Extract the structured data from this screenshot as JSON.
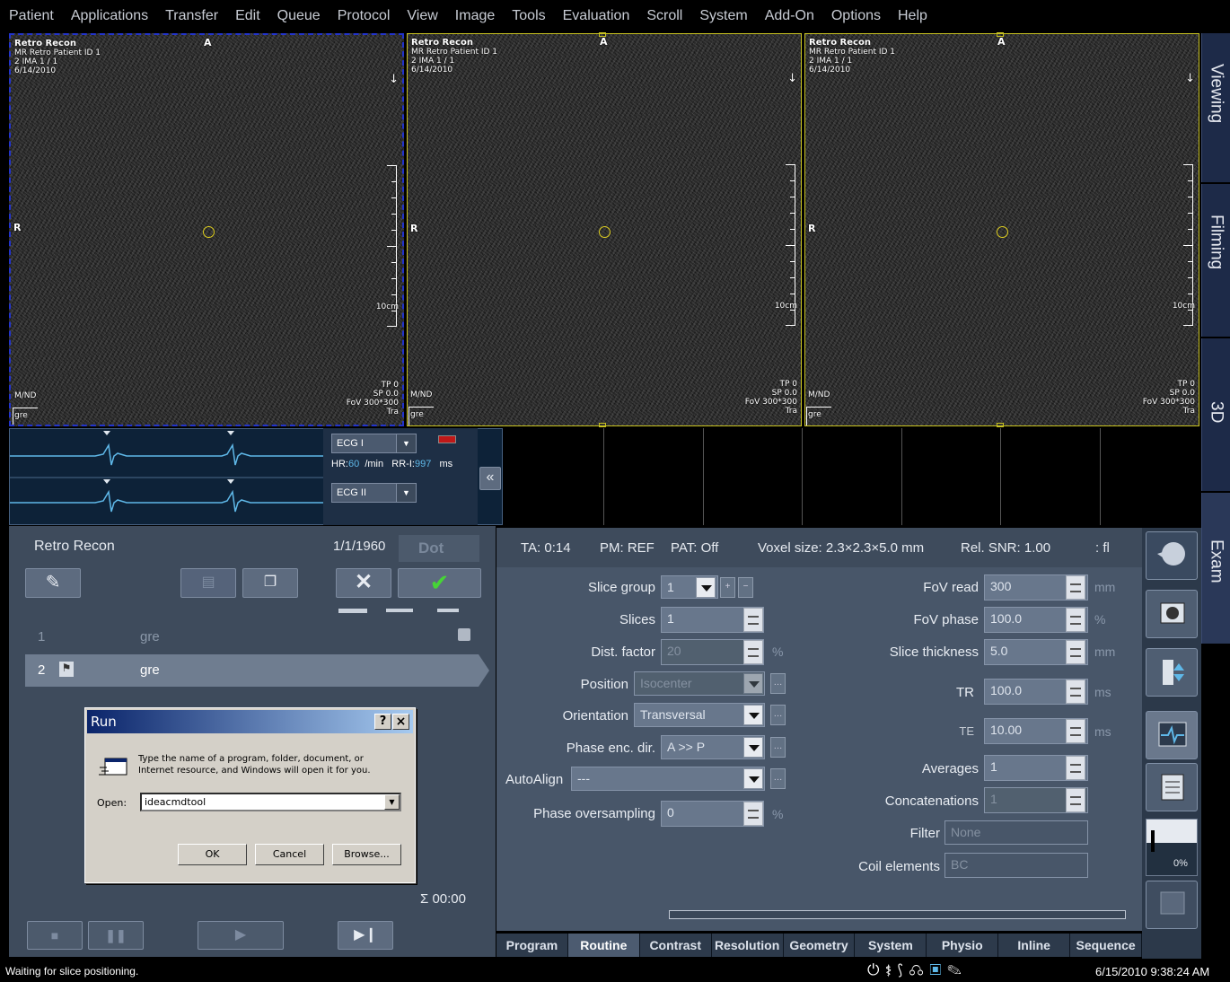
{
  "menu": [
    "Patient",
    "Applications",
    "Transfer",
    "Edit",
    "Queue",
    "Protocol",
    "View",
    "Image",
    "Tools",
    "Evaluation",
    "Scroll",
    "System",
    "Add-On",
    "Options",
    "Help"
  ],
  "viewport": {
    "title": "Retro Recon",
    "patient": "MR Retro Patient ID 1",
    "ima": "2 IMA 1 / 1",
    "date": "6/14/2010",
    "orient_top": "A",
    "orient_left": "R",
    "arrow": "↓",
    "scale": "10cm",
    "bl1": "M/ND",
    "bl2": "gre",
    "tp": "TP 0",
    "sp": "SP 0.0",
    "fov": "FoV 300*300",
    "tra": "Tra"
  },
  "side_tabs": [
    "Viewing",
    "Filming",
    "3D",
    "Exam"
  ],
  "ecg": {
    "lead1": "ECG I",
    "lead2": "ECG II",
    "hr_label": "HR:",
    "hr": "60",
    "hr_unit": "/min",
    "rr_label": "RR-I:",
    "rr": "997",
    "rr_unit": "ms",
    "collapse": "«"
  },
  "left_panel": {
    "title": "Retro Recon",
    "date": "1/1/1960",
    "dot": "Dot",
    "rows": [
      {
        "num": "1",
        "name": "gre"
      },
      {
        "num": "2",
        "name": "gre"
      }
    ],
    "sum": "Σ 00:00"
  },
  "status_line": {
    "ta": "TA: 0:14",
    "pm": "PM: REF",
    "pat": "PAT: Off",
    "voxel": "Voxel size: 2.3×2.3×5.0 mm",
    "snr": "Rel. SNR: 1.00",
    "fl": ": fl"
  },
  "params_left": {
    "slice_group": {
      "label": "Slice group",
      "value": "1",
      "plus": "+",
      "minus": "−"
    },
    "slices": {
      "label": "Slices",
      "value": "1"
    },
    "dist_factor": {
      "label": "Dist. factor",
      "value": "20",
      "unit": "%"
    },
    "position": {
      "label": "Position",
      "value": "Isocenter"
    },
    "orientation": {
      "label": "Orientation",
      "value": "Transversal"
    },
    "phase_enc": {
      "label": "Phase enc. dir.",
      "value": "A >> P"
    },
    "autoalign": {
      "label": "AutoAlign",
      "value": "---"
    },
    "phase_os": {
      "label": "Phase oversampling",
      "value": "0",
      "unit": "%"
    }
  },
  "params_right": {
    "fov_read": {
      "label": "FoV read",
      "value": "300",
      "unit": "mm"
    },
    "fov_phase": {
      "label": "FoV phase",
      "value": "100.0",
      "unit": "%"
    },
    "slice_thk": {
      "label": "Slice thickness",
      "value": "5.0",
      "unit": "mm"
    },
    "tr": {
      "label": "TR",
      "value": "100.0",
      "unit": "ms"
    },
    "te": {
      "label": "TE",
      "value": "10.00",
      "unit": "ms"
    },
    "averages": {
      "label": "Averages",
      "value": "1"
    },
    "concat": {
      "label": "Concatenations",
      "value": "1"
    },
    "filter": {
      "label": "Filter",
      "value": "None"
    },
    "coil": {
      "label": "Coil elements",
      "value": "BC"
    }
  },
  "tabs": [
    "Program",
    "Routine",
    "Contrast",
    "Resolution",
    "Geometry",
    "System",
    "Physio",
    "Inline",
    "Sequence"
  ],
  "active_tab": "Routine",
  "percent": "0%",
  "run_dialog": {
    "title": "Run",
    "help": "?",
    "close": "×",
    "text1": "Type the name of a program, folder, document, or",
    "text2": "Internet resource, and Windows will open it for you.",
    "open_label": "Open:",
    "value": "ideacmdtool",
    "ok": "OK",
    "cancel": "Cancel",
    "browse": "Browse..."
  },
  "status": {
    "message": "Waiting for slice positioning.",
    "datetime": "6/15/2010 9:38:24 AM"
  },
  "colors": {
    "accent": "#5fb8e8",
    "panel": "#3e4b5c",
    "viewport_border": "#c9c320"
  }
}
